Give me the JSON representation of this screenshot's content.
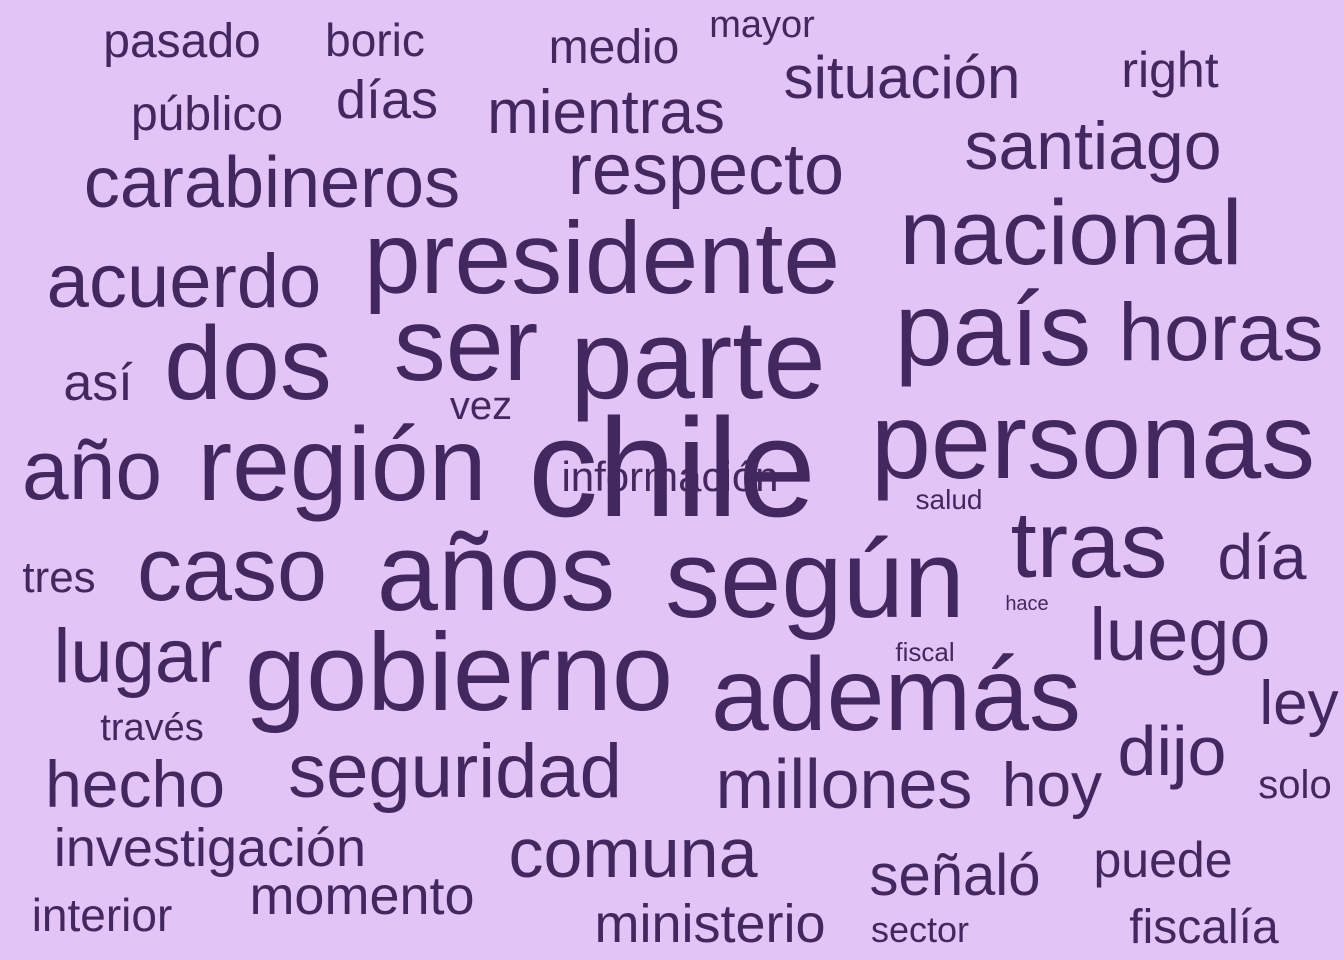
{
  "colors": {
    "background": "#e2c4f6",
    "text": "#432860"
  },
  "words": [
    "pasado",
    "boric",
    "medio",
    "mayor",
    "right",
    "situación",
    "público",
    "días",
    "mientras",
    "santiago",
    "carabineros",
    "respecto",
    "nacional",
    "presidente",
    "acuerdo",
    "país",
    "dos",
    "ser",
    "parte",
    "horas",
    "así",
    "vez",
    "año",
    "región",
    "chile",
    "personas",
    "información",
    "salud",
    "tras",
    "tres",
    "caso",
    "años",
    "según",
    "día",
    "hace",
    "luego",
    "fiscal",
    "lugar",
    "gobierno",
    "además",
    "través",
    "ley",
    "dijo",
    "hecho",
    "seguridad",
    "millones",
    "hoy",
    "solo",
    "investigación",
    "comuna",
    "señaló",
    "puede",
    "momento",
    "interior",
    "ministerio",
    "sector",
    "fiscalía"
  ]
}
